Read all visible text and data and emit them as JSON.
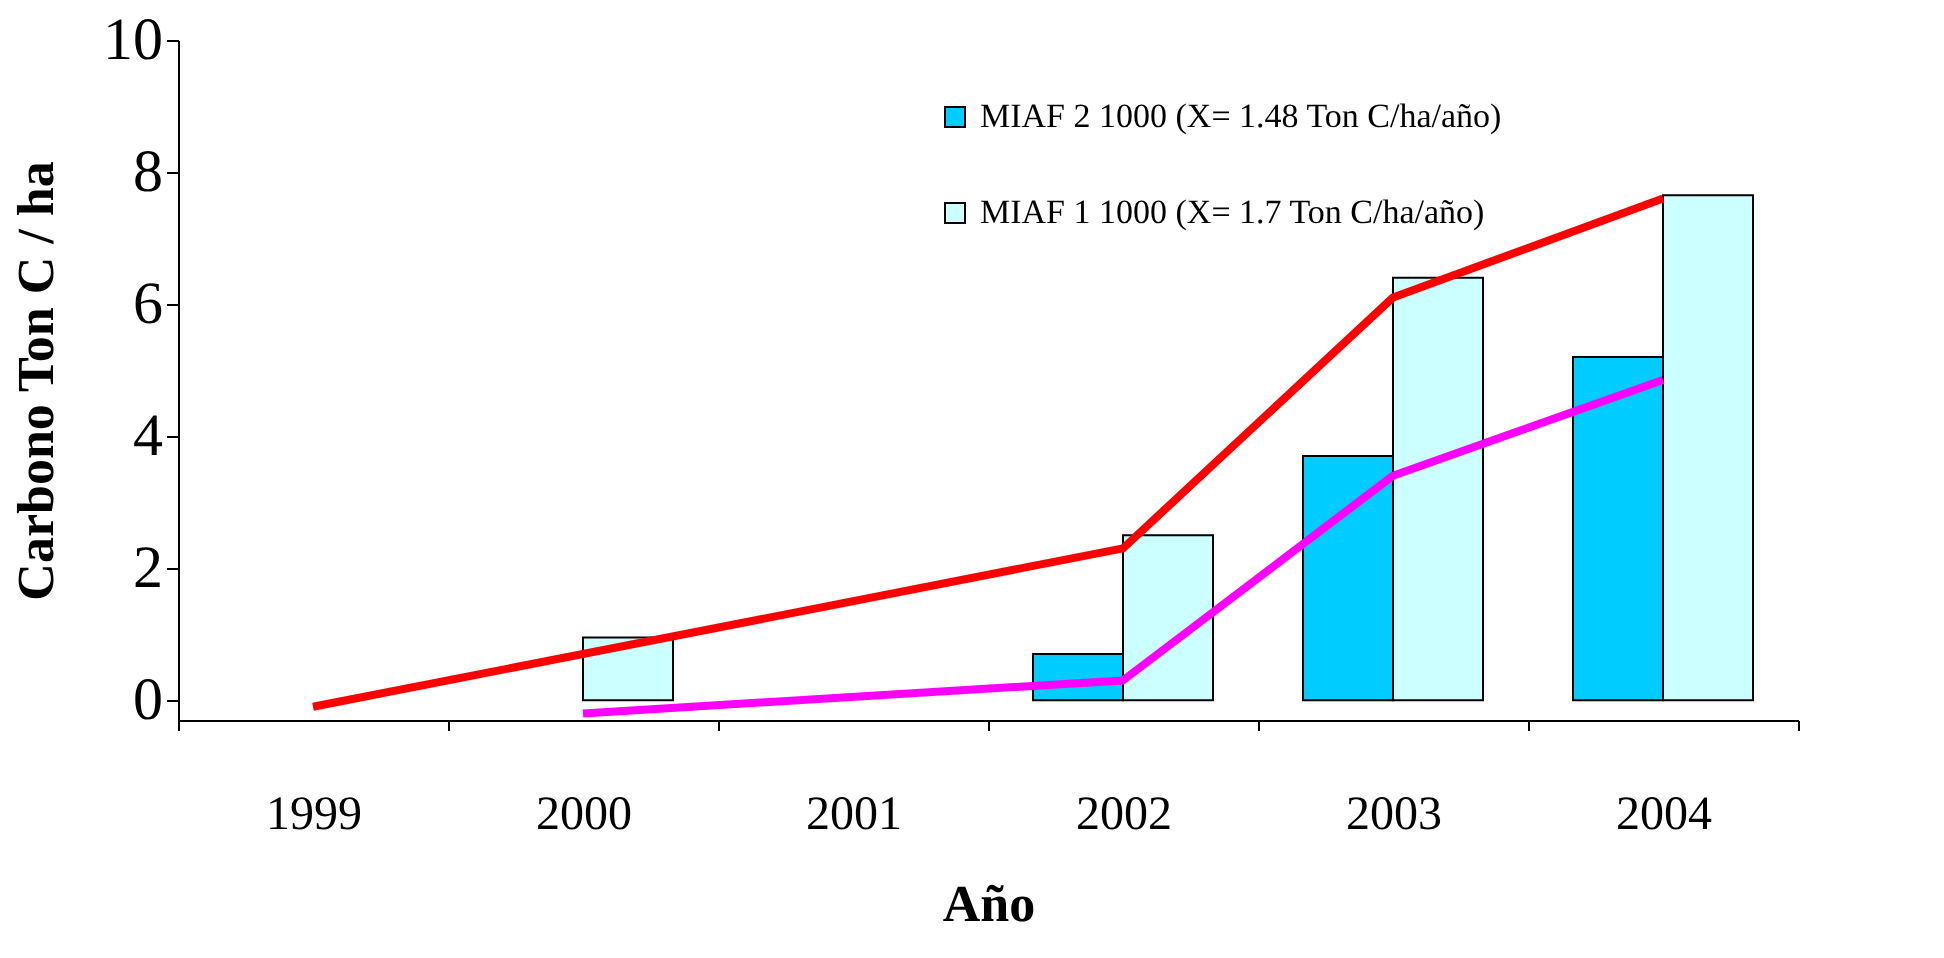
{
  "chart_data": {
    "type": "bar",
    "xlabel": "Año",
    "ylabel": "Carbono Ton C / ha",
    "categories": [
      "1999",
      "2000",
      "2001",
      "2002",
      "2003",
      "2004"
    ],
    "series": [
      {
        "name": "MIAF 2 1000 (X= 1.48 Ton C/ha/año)",
        "color": "#00ccff",
        "values": [
          null,
          null,
          null,
          0.7,
          3.7,
          5.2
        ]
      },
      {
        "name": "MIAF 1 1000 (X= 1.7 Ton C/ha/año)",
        "color": "#ccffff",
        "values": [
          null,
          0.95,
          null,
          2.5,
          6.4,
          7.65
        ]
      },
      {
        "type": "line",
        "color": "#ff0000",
        "values": [
          -0.1,
          null,
          null,
          2.3,
          6.1,
          7.6
        ]
      },
      {
        "type": "line",
        "color": "#ff00ff",
        "values": [
          null,
          -0.2,
          null,
          0.3,
          3.4,
          4.85
        ]
      }
    ],
    "ylim": [
      -0.3,
      10
    ],
    "yticks": [
      0,
      2,
      4,
      6,
      8,
      10
    ],
    "grid": false,
    "legend": "top right"
  }
}
